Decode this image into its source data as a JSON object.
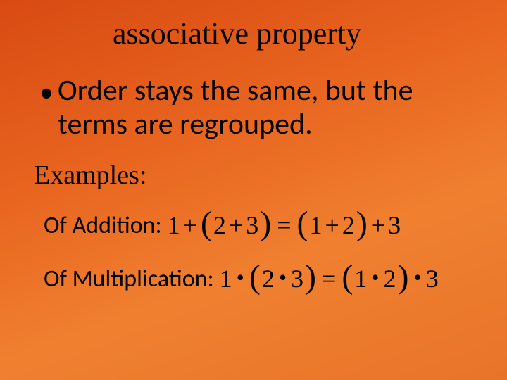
{
  "slide": {
    "background_gradient": [
      "#d84a12",
      "#e8641f",
      "#f08030",
      "#e8742a"
    ],
    "title": "associative property",
    "title_font": "Times New Roman",
    "title_fontsize": 44,
    "bullet": {
      "text": "Order stays the same, but the terms are regrouped.",
      "fontsize": 42
    },
    "examples_label": "Examples:",
    "examples_label_font": "Times New Roman",
    "examples_label_fontsize": 38,
    "examples": [
      {
        "label": "Of Addition:",
        "label_fontsize": 34,
        "math_tokens": [
          "1",
          "+",
          "(",
          "2",
          "+",
          "3",
          ")",
          "=",
          "(",
          "1",
          "+",
          "2",
          ")",
          "+",
          "3"
        ],
        "math_display": "1 + (2 + 3) = (1 + 2) + 3",
        "operator": "+"
      },
      {
        "label": "Of Multiplication:",
        "label_fontsize": 34,
        "math_tokens": [
          "1",
          "·",
          "(",
          "2",
          "·",
          "3",
          ")",
          "=",
          "(",
          "1",
          "·",
          "2",
          ")",
          "·",
          "3"
        ],
        "math_display": "1 • (2 • 3) = (1 • 2) • 3",
        "operator": "·"
      }
    ],
    "text_color": "#000000"
  }
}
